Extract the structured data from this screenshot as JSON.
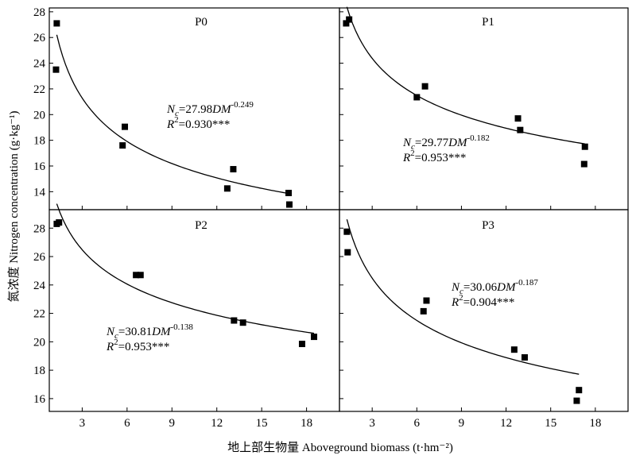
{
  "figure": {
    "ylabel": "氮浓度 Nitrogen concentration (g·kg⁻¹)",
    "xlabel": "地上部生物量 Aboveground biomass (t·hm⁻²)"
  },
  "chart_data": [
    {
      "type": "scatter",
      "title": "P0",
      "x_ticks": [
        "3",
        "6",
        "9",
        "12",
        "15",
        "18"
      ],
      "y_ticks": [
        "14",
        "16",
        "18",
        "20",
        "22",
        "24",
        "26",
        "28"
      ],
      "xlim": [
        0.8,
        20.2
      ],
      "ylim": [
        12.6,
        28.3
      ],
      "points": [
        [
          1.3,
          27.1
        ],
        [
          1.25,
          23.5
        ],
        [
          5.7,
          17.6
        ],
        [
          5.85,
          19.05
        ],
        [
          12.7,
          14.25
        ],
        [
          13.1,
          15.75
        ],
        [
          16.8,
          13.9
        ],
        [
          16.85,
          13.0
        ]
      ],
      "fit": {
        "a": 27.98,
        "b": -0.249,
        "x_range": [
          1.3,
          16.8
        ]
      },
      "equation": {
        "prefix": "N",
        "sub": "c",
        "mid": "=27.98",
        "var": "DM",
        "exp": "-0.249"
      },
      "r2": {
        "prefix": "R",
        "sup": "2",
        "value": "=0.930***"
      }
    },
    {
      "type": "scatter",
      "title": "P1",
      "x_ticks": [
        "3",
        "6",
        "9",
        "12",
        "15",
        "18"
      ],
      "y_ticks": [
        "14",
        "16",
        "18",
        "20",
        "22",
        "24",
        "26",
        "28"
      ],
      "xlim": [
        0.8,
        20.2
      ],
      "ylim": [
        12.6,
        28.3
      ],
      "points": [
        [
          1.25,
          27.1
        ],
        [
          1.45,
          27.4
        ],
        [
          6.0,
          21.35
        ],
        [
          6.55,
          22.2
        ],
        [
          12.8,
          19.7
        ],
        [
          12.95,
          18.8
        ],
        [
          17.3,
          17.5
        ],
        [
          17.25,
          16.15
        ]
      ],
      "fit": {
        "a": 29.77,
        "b": -0.182,
        "x_range": [
          1.3,
          17.3
        ]
      },
      "equation": {
        "prefix": "N",
        "sub": "c",
        "mid": "=29.77",
        "var": "DM",
        "exp": "-0.182"
      },
      "r2": {
        "prefix": "R",
        "sup": "2",
        "value": "=0.953***"
      }
    },
    {
      "type": "scatter",
      "title": "P2",
      "x_ticks": [
        "3",
        "6",
        "9",
        "12",
        "15",
        "18"
      ],
      "y_ticks": [
        "16",
        "18",
        "20",
        "22",
        "24",
        "26",
        "28"
      ],
      "xlim": [
        0.8,
        20.2
      ],
      "ylim": [
        15.1,
        29.3
      ],
      "points": [
        [
          1.3,
          28.3
        ],
        [
          1.45,
          28.4
        ],
        [
          6.6,
          24.7
        ],
        [
          6.9,
          24.7
        ],
        [
          13.15,
          21.5
        ],
        [
          13.75,
          21.35
        ],
        [
          17.7,
          19.85
        ],
        [
          18.5,
          20.35
        ]
      ],
      "fit": {
        "a": 30.81,
        "b": -0.138,
        "x_range": [
          1.3,
          18.5
        ]
      },
      "equation": {
        "prefix": "N",
        "sub": "c",
        "mid": "=30.81",
        "var": "DM",
        "exp": "-0.138"
      },
      "r2": {
        "prefix": "R",
        "sup": "2",
        "value": "=0.953***"
      }
    },
    {
      "type": "scatter",
      "title": "P3",
      "x_ticks": [
        "3",
        "6",
        "9",
        "12",
        "15",
        "18"
      ],
      "y_ticks": [
        "16",
        "18",
        "20",
        "22",
        "24",
        "26",
        "28"
      ],
      "xlim": [
        0.8,
        20.2
      ],
      "ylim": [
        15.1,
        29.3
      ],
      "points": [
        [
          1.3,
          27.75
        ],
        [
          1.35,
          26.3
        ],
        [
          6.45,
          22.15
        ],
        [
          6.65,
          22.9
        ],
        [
          12.55,
          19.45
        ],
        [
          13.25,
          18.9
        ],
        [
          16.75,
          15.85
        ],
        [
          16.9,
          16.6
        ]
      ],
      "fit": {
        "a": 30.06,
        "b": -0.187,
        "x_range": [
          1.3,
          16.9
        ]
      },
      "equation": {
        "prefix": "N",
        "sub": "c",
        "mid": "=30.06",
        "var": "DM",
        "exp": "-0.187"
      },
      "r2": {
        "prefix": "R",
        "sup": "2",
        "value": "=0.904***"
      }
    }
  ]
}
